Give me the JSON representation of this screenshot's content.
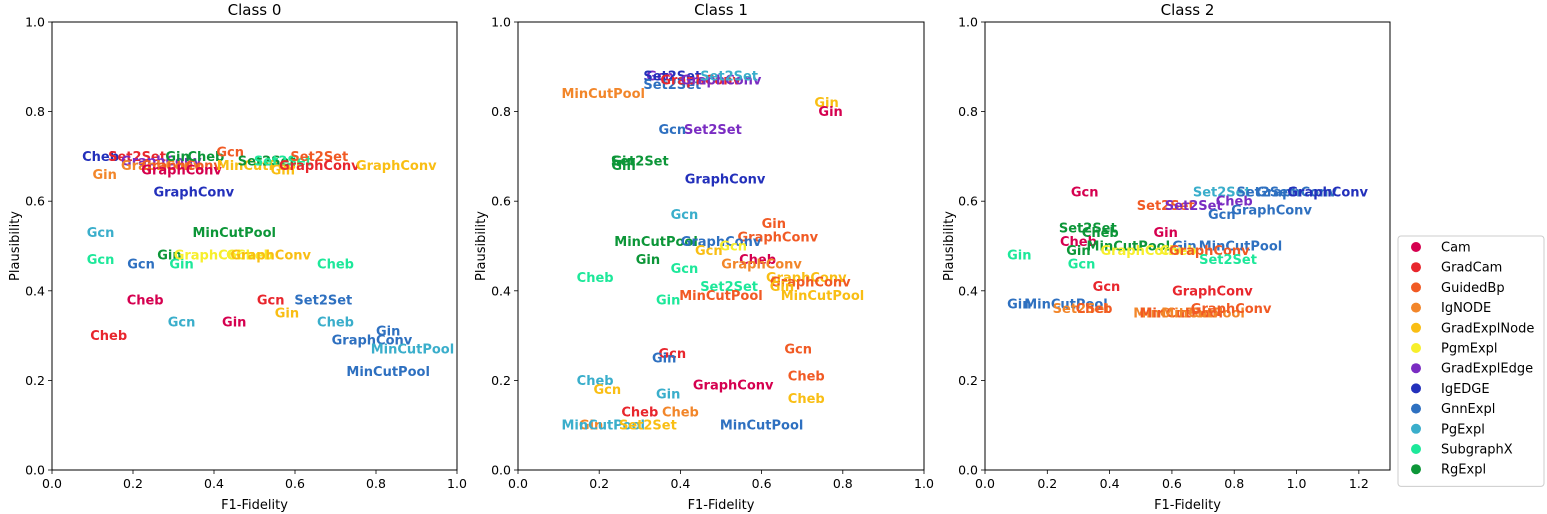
{
  "colors": {
    "Cam": "#d5004f",
    "GradCam": "#e8262d",
    "GuidedBp": "#f15a24",
    "IgNODE": "#f2862a",
    "GradExplNode": "#f9be14",
    "PgmExpl": "#f7ef2c",
    "GradExplEdge": "#7a2cc2",
    "IgEDGE": "#2330bb",
    "GnnExpl": "#2e70c0",
    "PgExpl": "#3aaecb",
    "SubgraphX": "#1de89a",
    "RgExpl": "#0c9638"
  },
  "chart_data": [
    {
      "type": "scatter",
      "title": "Class 0",
      "xlabel": "F1-Fidelity",
      "ylabel": "Plausibility",
      "xlim": [
        0,
        1.0
      ],
      "ylim": [
        0,
        1.0
      ],
      "xticks": [
        0.0,
        0.2,
        0.4,
        0.6,
        0.8,
        1.0
      ],
      "yticks": [
        0.0,
        0.2,
        0.4,
        0.6,
        0.8,
        1.0
      ],
      "tick_labels_x": [
        "0.0",
        "0.2",
        "0.4",
        "0.6",
        "0.8",
        "1.0"
      ],
      "tick_labels_y": [
        "0.0",
        "0.2",
        "0.4",
        "0.6",
        "0.8",
        "1.0"
      ],
      "points": [
        {
          "x": 0.12,
          "y": 0.7,
          "label": "Cheb",
          "method": "IgEDGE"
        },
        {
          "x": 0.21,
          "y": 0.7,
          "label": "Set2Set",
          "method": "GradCam"
        },
        {
          "x": 0.27,
          "y": 0.69,
          "label": "GraphConv",
          "method": "GradExplEdge"
        },
        {
          "x": 0.27,
          "y": 0.68,
          "label": "GraphConv",
          "method": "IgNODE"
        },
        {
          "x": 0.32,
          "y": 0.68,
          "label": "GraphConv",
          "method": "GuidedBp"
        },
        {
          "x": 0.32,
          "y": 0.67,
          "label": "GraphConv",
          "method": "Cam"
        },
        {
          "x": 0.13,
          "y": 0.66,
          "label": "Gin",
          "method": "IgNODE"
        },
        {
          "x": 0.35,
          "y": 0.62,
          "label": "GraphConv",
          "method": "IgEDGE"
        },
        {
          "x": 0.31,
          "y": 0.7,
          "label": "Gin",
          "method": "RgExpl"
        },
        {
          "x": 0.38,
          "y": 0.7,
          "label": "Cheb",
          "method": "RgExpl"
        },
        {
          "x": 0.44,
          "y": 0.71,
          "label": "Gcn",
          "method": "GuidedBp"
        },
        {
          "x": 0.51,
          "y": 0.68,
          "label": "MinCutPool",
          "method": "GradExplNode"
        },
        {
          "x": 0.53,
          "y": 0.69,
          "label": "Set2Set",
          "method": "RgExpl"
        },
        {
          "x": 0.57,
          "y": 0.69,
          "label": "Set2Set",
          "method": "SubgraphX"
        },
        {
          "x": 0.57,
          "y": 0.67,
          "label": "Gin",
          "method": "GradExplNode"
        },
        {
          "x": 0.66,
          "y": 0.7,
          "label": "Set2Set",
          "method": "GuidedBp"
        },
        {
          "x": 0.66,
          "y": 0.68,
          "label": "GraphConv",
          "method": "GradCam"
        },
        {
          "x": 0.85,
          "y": 0.68,
          "label": "GraphConv",
          "method": "GradExplNode"
        },
        {
          "x": 0.12,
          "y": 0.53,
          "label": "Gcn",
          "method": "PgExpl"
        },
        {
          "x": 0.12,
          "y": 0.47,
          "label": "Gcn",
          "method": "SubgraphX"
        },
        {
          "x": 0.22,
          "y": 0.46,
          "label": "Gcn",
          "method": "GnnExpl"
        },
        {
          "x": 0.29,
          "y": 0.48,
          "label": "Gin",
          "method": "RgExpl"
        },
        {
          "x": 0.32,
          "y": 0.46,
          "label": "Gin",
          "method": "SubgraphX"
        },
        {
          "x": 0.45,
          "y": 0.53,
          "label": "MinCutPool",
          "method": "RgExpl"
        },
        {
          "x": 0.4,
          "y": 0.48,
          "label": "GraphConv",
          "method": "PgmExpl"
        },
        {
          "x": 0.46,
          "y": 0.48,
          "label": "Gin",
          "method": "PgmExpl"
        },
        {
          "x": 0.5,
          "y": 0.48,
          "label": "Cheb",
          "method": "PgmExpl"
        },
        {
          "x": 0.54,
          "y": 0.48,
          "label": "GraphConv",
          "method": "GradExplNode"
        },
        {
          "x": 0.7,
          "y": 0.46,
          "label": "Cheb",
          "method": "SubgraphX"
        },
        {
          "x": 0.23,
          "y": 0.38,
          "label": "Cheb",
          "method": "Cam"
        },
        {
          "x": 0.14,
          "y": 0.3,
          "label": "Cheb",
          "method": "GradCam"
        },
        {
          "x": 0.32,
          "y": 0.33,
          "label": "Gcn",
          "method": "PgExpl"
        },
        {
          "x": 0.45,
          "y": 0.33,
          "label": "Gin",
          "method": "Cam"
        },
        {
          "x": 0.54,
          "y": 0.38,
          "label": "Gcn",
          "method": "GradCam"
        },
        {
          "x": 0.58,
          "y": 0.35,
          "label": "Gin",
          "method": "GradExplNode"
        },
        {
          "x": 0.67,
          "y": 0.38,
          "label": "Set2Set",
          "method": "GnnExpl"
        },
        {
          "x": 0.7,
          "y": 0.33,
          "label": "Cheb",
          "method": "PgExpl"
        },
        {
          "x": 0.83,
          "y": 0.31,
          "label": "Gin",
          "method": "GnnExpl"
        },
        {
          "x": 0.79,
          "y": 0.29,
          "label": "GraphConv",
          "method": "GnnExpl"
        },
        {
          "x": 0.89,
          "y": 0.27,
          "label": "MinCutPool",
          "method": "PgExpl"
        },
        {
          "x": 0.83,
          "y": 0.22,
          "label": "MinCutPool",
          "method": "GnnExpl"
        }
      ]
    },
    {
      "type": "scatter",
      "title": "Class 1",
      "xlabel": "F1-Fidelity",
      "ylabel": "Plausibility",
      "xlim": [
        0,
        1.0
      ],
      "ylim": [
        0,
        1.0
      ],
      "xticks": [
        0.0,
        0.2,
        0.4,
        0.6,
        0.8,
        1.0
      ],
      "yticks": [
        0.0,
        0.2,
        0.4,
        0.6,
        0.8,
        1.0
      ],
      "tick_labels_x": [
        "0.0",
        "0.2",
        "0.4",
        "0.6",
        "0.8",
        "1.0"
      ],
      "tick_labels_y": [
        "0.0",
        "0.2",
        "0.4",
        "0.6",
        "0.8",
        "1.0"
      ],
      "points": [
        {
          "x": 0.21,
          "y": 0.84,
          "label": "MinCutPool",
          "method": "IgNODE"
        },
        {
          "x": 0.35,
          "y": 0.88,
          "label": "Gcn",
          "method": "GradExplEdge"
        },
        {
          "x": 0.38,
          "y": 0.88,
          "label": "Set2Set",
          "method": "IgEDGE"
        },
        {
          "x": 0.38,
          "y": 0.86,
          "label": "Set2Set",
          "method": "GnnExpl"
        },
        {
          "x": 0.45,
          "y": 0.87,
          "label": "GraphConv",
          "method": "GradCam"
        },
        {
          "x": 0.5,
          "y": 0.87,
          "label": "GraphConv",
          "method": "GradExplEdge"
        },
        {
          "x": 0.52,
          "y": 0.88,
          "label": "Set2Set",
          "method": "PgExpl"
        },
        {
          "x": 0.76,
          "y": 0.82,
          "label": "Gin",
          "method": "GradExplNode"
        },
        {
          "x": 0.77,
          "y": 0.8,
          "label": "Gin",
          "method": "Cam"
        },
        {
          "x": 0.38,
          "y": 0.76,
          "label": "Gcn",
          "method": "GnnExpl"
        },
        {
          "x": 0.48,
          "y": 0.76,
          "label": "Set2Set",
          "method": "GradExplEdge"
        },
        {
          "x": 0.26,
          "y": 0.69,
          "label": "Gin",
          "method": "RgExpl"
        },
        {
          "x": 0.3,
          "y": 0.69,
          "label": "Set2Set",
          "method": "RgExpl"
        },
        {
          "x": 0.26,
          "y": 0.68,
          "label": "Gin",
          "method": "RgExpl"
        },
        {
          "x": 0.51,
          "y": 0.65,
          "label": "GraphConv",
          "method": "IgEDGE"
        },
        {
          "x": 0.41,
          "y": 0.57,
          "label": "Gcn",
          "method": "PgExpl"
        },
        {
          "x": 0.63,
          "y": 0.55,
          "label": "Gin",
          "method": "GuidedBp"
        },
        {
          "x": 0.64,
          "y": 0.52,
          "label": "GraphConv",
          "method": "GuidedBp"
        },
        {
          "x": 0.34,
          "y": 0.51,
          "label": "MinCutPool",
          "method": "RgExpl"
        },
        {
          "x": 0.5,
          "y": 0.51,
          "label": "GraphConv",
          "method": "GnnExpl"
        },
        {
          "x": 0.47,
          "y": 0.49,
          "label": "Gcn",
          "method": "GradExplNode"
        },
        {
          "x": 0.53,
          "y": 0.5,
          "label": "Gcn",
          "method": "PgmExpl"
        },
        {
          "x": 0.32,
          "y": 0.47,
          "label": "Gin",
          "method": "RgExpl"
        },
        {
          "x": 0.59,
          "y": 0.47,
          "label": "Cheb",
          "method": "Cam"
        },
        {
          "x": 0.6,
          "y": 0.46,
          "label": "GraphConv",
          "method": "IgNODE"
        },
        {
          "x": 0.19,
          "y": 0.43,
          "label": "Cheb",
          "method": "SubgraphX"
        },
        {
          "x": 0.41,
          "y": 0.45,
          "label": "Gcn",
          "method": "SubgraphX"
        },
        {
          "x": 0.71,
          "y": 0.43,
          "label": "GraphConv",
          "method": "GradExplNode"
        },
        {
          "x": 0.72,
          "y": 0.42,
          "label": "GraphConv",
          "method": "GuidedBp"
        },
        {
          "x": 0.52,
          "y": 0.41,
          "label": "Set2Set",
          "method": "SubgraphX"
        },
        {
          "x": 0.5,
          "y": 0.39,
          "label": "MinCutPool",
          "method": "GuidedBp"
        },
        {
          "x": 0.37,
          "y": 0.38,
          "label": "Gin",
          "method": "SubgraphX"
        },
        {
          "x": 0.65,
          "y": 0.41,
          "label": "Gin",
          "method": "GradExplNode"
        },
        {
          "x": 0.75,
          "y": 0.39,
          "label": "MinCutPool",
          "method": "GradExplNode"
        },
        {
          "x": 0.38,
          "y": 0.26,
          "label": "Gcn",
          "method": "GradCam"
        },
        {
          "x": 0.36,
          "y": 0.25,
          "label": "Gin",
          "method": "GnnExpl"
        },
        {
          "x": 0.69,
          "y": 0.27,
          "label": "Gcn",
          "method": "GuidedBp"
        },
        {
          "x": 0.53,
          "y": 0.19,
          "label": "GraphConv",
          "method": "Cam"
        },
        {
          "x": 0.19,
          "y": 0.2,
          "label": "Cheb",
          "method": "PgExpl"
        },
        {
          "x": 0.22,
          "y": 0.18,
          "label": "Gcn",
          "method": "GradExplNode"
        },
        {
          "x": 0.37,
          "y": 0.17,
          "label": "Gin",
          "method": "PgExpl"
        },
        {
          "x": 0.71,
          "y": 0.21,
          "label": "Cheb",
          "method": "GuidedBp"
        },
        {
          "x": 0.71,
          "y": 0.16,
          "label": "Cheb",
          "method": "GradExplNode"
        },
        {
          "x": 0.3,
          "y": 0.13,
          "label": "Cheb",
          "method": "GradCam"
        },
        {
          "x": 0.4,
          "y": 0.13,
          "label": "Cheb",
          "method": "IgNODE"
        },
        {
          "x": 0.18,
          "y": 0.1,
          "label": "Gin",
          "method": "IgNODE"
        },
        {
          "x": 0.21,
          "y": 0.1,
          "label": "MinCutPool",
          "method": "PgExpl"
        },
        {
          "x": 0.32,
          "y": 0.1,
          "label": "Set2Set",
          "method": "GradExplNode"
        },
        {
          "x": 0.6,
          "y": 0.1,
          "label": "MinCutPool",
          "method": "GnnExpl"
        }
      ]
    },
    {
      "type": "scatter",
      "title": "Class 2",
      "xlabel": "F1-Fidelity",
      "ylabel": "Plausibility",
      "xlim": [
        0,
        1.3
      ],
      "ylim": [
        0,
        1.0
      ],
      "xticks": [
        0.0,
        0.2,
        0.4,
        0.6,
        0.8,
        1.0,
        1.2
      ],
      "yticks": [
        0.0,
        0.2,
        0.4,
        0.6,
        0.8,
        1.0
      ],
      "tick_labels_x": [
        "0.0",
        "0.2",
        "0.4",
        "0.6",
        "0.8",
        "1.0",
        "1.2"
      ],
      "tick_labels_y": [
        "0.0",
        "0.2",
        "0.4",
        "0.6",
        "0.8",
        "1.0"
      ],
      "points": [
        {
          "x": 0.32,
          "y": 0.62,
          "label": "Gcn",
          "method": "Cam"
        },
        {
          "x": 0.58,
          "y": 0.59,
          "label": "Set2Set",
          "method": "GuidedBp"
        },
        {
          "x": 0.67,
          "y": 0.59,
          "label": "Set2Set",
          "method": "GradExplEdge"
        },
        {
          "x": 0.76,
          "y": 0.62,
          "label": "Set2Set",
          "method": "PgExpl"
        },
        {
          "x": 0.8,
          "y": 0.6,
          "label": "Cheb",
          "method": "GradExplEdge"
        },
        {
          "x": 0.76,
          "y": 0.57,
          "label": "Gcn",
          "method": "GnnExpl"
        },
        {
          "x": 0.9,
          "y": 0.62,
          "label": "Set2Set",
          "method": "GnnExpl"
        },
        {
          "x": 1.0,
          "y": 0.62,
          "label": "GraphConv",
          "method": "GnnExpl"
        },
        {
          "x": 1.1,
          "y": 0.62,
          "label": "GraphConv",
          "method": "IgEDGE"
        },
        {
          "x": 0.92,
          "y": 0.58,
          "label": "GraphConv",
          "method": "GnnExpl"
        },
        {
          "x": 0.33,
          "y": 0.54,
          "label": "Set2Set",
          "method": "RgExpl"
        },
        {
          "x": 0.37,
          "y": 0.53,
          "label": "Cheb",
          "method": "RgExpl"
        },
        {
          "x": 0.3,
          "y": 0.51,
          "label": "Cheb",
          "method": "Cam"
        },
        {
          "x": 0.58,
          "y": 0.53,
          "label": "Gin",
          "method": "Cam"
        },
        {
          "x": 0.46,
          "y": 0.5,
          "label": "MinCutPool",
          "method": "RgExpl"
        },
        {
          "x": 0.82,
          "y": 0.5,
          "label": "MinCutPool",
          "method": "GnnExpl"
        },
        {
          "x": 0.3,
          "y": 0.49,
          "label": "Gin",
          "method": "RgExpl"
        },
        {
          "x": 0.64,
          "y": 0.5,
          "label": "Gin",
          "method": "GnnExpl"
        },
        {
          "x": 0.5,
          "y": 0.49,
          "label": "GraphConv",
          "method": "PgmExpl"
        },
        {
          "x": 0.62,
          "y": 0.49,
          "label": "Cheb",
          "method": "PgmExpl"
        },
        {
          "x": 0.72,
          "y": 0.49,
          "label": "GraphConv",
          "method": "GuidedBp"
        },
        {
          "x": 0.11,
          "y": 0.48,
          "label": "Gin",
          "method": "SubgraphX"
        },
        {
          "x": 0.31,
          "y": 0.46,
          "label": "Gcn",
          "method": "SubgraphX"
        },
        {
          "x": 0.78,
          "y": 0.47,
          "label": "Set2Set",
          "method": "SubgraphX"
        },
        {
          "x": 0.39,
          "y": 0.41,
          "label": "Gcn",
          "method": "GradCam"
        },
        {
          "x": 0.73,
          "y": 0.4,
          "label": "GraphConv",
          "method": "GradCam"
        },
        {
          "x": 0.11,
          "y": 0.37,
          "label": "Gin",
          "method": "GnnExpl"
        },
        {
          "x": 0.26,
          "y": 0.37,
          "label": "MinCutPool",
          "method": "GnnExpl"
        },
        {
          "x": 0.31,
          "y": 0.36,
          "label": "Set2Set",
          "method": "IgNODE"
        },
        {
          "x": 0.35,
          "y": 0.36,
          "label": "Cheb",
          "method": "GuidedBp"
        },
        {
          "x": 0.61,
          "y": 0.35,
          "label": "MinCutPool",
          "method": "IgNODE"
        },
        {
          "x": 0.63,
          "y": 0.35,
          "label": "MinCutPool",
          "method": "GuidedBp"
        },
        {
          "x": 0.7,
          "y": 0.35,
          "label": "MinCutPool",
          "method": "IgNODE"
        },
        {
          "x": 0.79,
          "y": 0.36,
          "label": "GraphConv",
          "method": "GuidedBp"
        }
      ]
    }
  ],
  "legend": {
    "placement": "right",
    "entries": [
      "Cam",
      "GradCam",
      "GuidedBp",
      "IgNODE",
      "GradExplNode",
      "PgmExpl",
      "GradExplEdge",
      "IgEDGE",
      "GnnExpl",
      "PgExpl",
      "SubgraphX",
      "RgExpl"
    ]
  }
}
